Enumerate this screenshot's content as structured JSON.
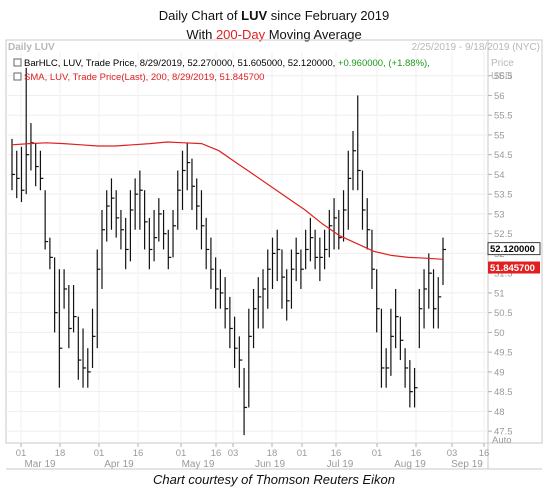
{
  "title": {
    "line1_prefix": "Daily Chart of ",
    "line1_ticker": "LUV",
    "line1_suffix": " since February 2019",
    "line2_prefix": "With ",
    "line2_highlight": "200-Day",
    "line2_suffix": " Moving Average"
  },
  "credit": "Chart courtesy of Thomson Reuters Eikon",
  "chart_data": {
    "type": "bar",
    "panel_label": "Daily LUV",
    "date_range": "2/25/2019 - 9/18/2019 (NYC)",
    "axis_header": [
      "Price",
      "USD"
    ],
    "legend": [
      {
        "text": "BarHLC, LUV, Trade Price, 8/29/2019, 52.270000, 51.605000, 52.120000, ",
        "change": "+0.960000, (+1.88%),",
        "color": "#000000",
        "change_color": "#1a9a1a"
      },
      {
        "text": "SMA, LUV, Trade Price(Last),  200,  8/29/2019, 51.845700",
        "color": "#e02020"
      }
    ],
    "ylim": [
      47.2,
      57.1
    ],
    "yticks": [
      47.5,
      48,
      48.5,
      49,
      49.5,
      50,
      50.5,
      51,
      51.5,
      52,
      52.5,
      53,
      53.5,
      54,
      54.5,
      55,
      55.5,
      56,
      56.5
    ],
    "ytick_labels": [
      "47.5",
      "48",
      "48.5",
      "49",
      "49.5",
      "50",
      "50.5",
      "51",
      "51.5",
      "52",
      "52.5",
      "53",
      "53.5",
      "54",
      "54.5",
      "55",
      "55.5",
      "56",
      "56.5"
    ],
    "day_ticks": [
      "01",
      "18",
      "01",
      "16",
      "01",
      "16",
      "03",
      "18",
      "01",
      "16",
      "01",
      "16",
      "03",
      "16"
    ],
    "month_labels": [
      "Mar 19",
      "Apr 19",
      "May 19",
      "Jun 19",
      "Jul 19",
      "Aug 19",
      "Sep 19"
    ],
    "auto_label": "Auto",
    "last_price": {
      "value": 52.12,
      "label": "52.120000"
    },
    "sma_value": {
      "value": 51.8457,
      "label": "51.845700"
    },
    "sma_color": "#e02020",
    "sma_points": [
      54.75,
      54.78,
      54.8,
      54.78,
      54.75,
      54.72,
      54.72,
      54.75,
      54.78,
      54.82,
      54.8,
      54.78,
      54.6,
      54.3,
      54.0,
      53.7,
      53.4,
      53.1,
      52.75,
      52.45,
      52.25,
      52.05,
      51.95,
      51.9,
      51.88,
      51.85
    ],
    "bars": [
      [
        53.6,
        54.9,
        54.0
      ],
      [
        53.4,
        54.6,
        53.9
      ],
      [
        53.3,
        54.7,
        53.6
      ],
      [
        53.5,
        56.7,
        54.5
      ],
      [
        54.1,
        55.3,
        54.8
      ],
      [
        53.7,
        54.8,
        54.2
      ],
      [
        53.6,
        54.6,
        53.9
      ],
      [
        52.1,
        53.6,
        52.3
      ],
      [
        51.6,
        52.4,
        51.9
      ],
      [
        50.0,
        51.9,
        50.5
      ],
      [
        48.6,
        51.6,
        49.6
      ],
      [
        50.6,
        51.6,
        51.1
      ],
      [
        49.6,
        51.2,
        50.1
      ],
      [
        50.0,
        51.2,
        50.4
      ],
      [
        48.8,
        50.4,
        49.3
      ],
      [
        48.6,
        50.1,
        49.1
      ],
      [
        48.6,
        49.6,
        49.0
      ],
      [
        49.1,
        50.6,
        49.9
      ],
      [
        49.6,
        52.1,
        51.6
      ],
      [
        51.1,
        53.1,
        52.6
      ],
      [
        52.3,
        53.6,
        53.2
      ],
      [
        52.6,
        53.9,
        53.4
      ],
      [
        52.4,
        53.6,
        52.9
      ],
      [
        52.1,
        53.1,
        52.6
      ],
      [
        51.6,
        52.9,
        52.1
      ],
      [
        51.8,
        53.6,
        53.1
      ],
      [
        52.6,
        53.9,
        53.5
      ],
      [
        52.6,
        54.1,
        53.6
      ],
      [
        52.1,
        53.6,
        52.8
      ],
      [
        51.6,
        52.9,
        52.1
      ],
      [
        51.8,
        53.1,
        52.4
      ],
      [
        52.3,
        53.4,
        53.0
      ],
      [
        52.1,
        53.1,
        52.5
      ],
      [
        51.6,
        52.6,
        51.9
      ],
      [
        51.9,
        53.1,
        52.7
      ],
      [
        52.6,
        54.1,
        53.6
      ],
      [
        53.1,
        54.6,
        54.1
      ],
      [
        53.6,
        54.8,
        54.3
      ],
      [
        53.1,
        54.4,
        53.7
      ],
      [
        52.6,
        53.9,
        53.2
      ],
      [
        52.1,
        53.6,
        52.7
      ],
      [
        51.6,
        52.9,
        52.1
      ],
      [
        51.1,
        52.4,
        51.6
      ],
      [
        50.6,
        51.9,
        51.1
      ],
      [
        50.6,
        51.6,
        51.0
      ],
      [
        50.1,
        51.4,
        50.6
      ],
      [
        49.6,
        50.9,
        50.1
      ],
      [
        49.1,
        50.4,
        49.6
      ],
      [
        48.6,
        49.9,
        49.3
      ],
      [
        47.4,
        49.1,
        48.1
      ],
      [
        48.1,
        50.6,
        49.9
      ],
      [
        49.6,
        51.1,
        50.6
      ],
      [
        50.1,
        51.4,
        50.9
      ],
      [
        50.1,
        51.6,
        51.1
      ],
      [
        50.6,
        52.1,
        51.6
      ],
      [
        51.1,
        52.4,
        52.0
      ],
      [
        51.3,
        52.6,
        52.1
      ],
      [
        50.6,
        52.1,
        51.4
      ],
      [
        50.3,
        51.6,
        50.8
      ],
      [
        50.6,
        52.1,
        51.6
      ],
      [
        51.3,
        52.4,
        52.0
      ],
      [
        51.1,
        52.1,
        51.6
      ],
      [
        51.6,
        52.6,
        52.1
      ],
      [
        51.8,
        52.9,
        52.4
      ],
      [
        51.6,
        52.6,
        51.9
      ],
      [
        51.3,
        52.4,
        51.9
      ],
      [
        51.6,
        52.6,
        52.1
      ],
      [
        51.9,
        53.1,
        52.7
      ],
      [
        52.1,
        53.4,
        52.9
      ],
      [
        52.1,
        53.1,
        52.4
      ],
      [
        52.3,
        53.6,
        53.1
      ],
      [
        52.6,
        54.6,
        53.9
      ],
      [
        53.6,
        55.1,
        54.6
      ],
      [
        53.6,
        56.0,
        54.1
      ],
      [
        52.6,
        54.1,
        53.1
      ],
      [
        52.1,
        53.4,
        52.6
      ],
      [
        51.1,
        52.6,
        51.6
      ],
      [
        50.0,
        51.6,
        50.6
      ],
      [
        48.6,
        50.6,
        49.1
      ],
      [
        48.6,
        49.6,
        49.1
      ],
      [
        48.9,
        50.6,
        49.9
      ],
      [
        49.6,
        51.1,
        50.4
      ],
      [
        49.3,
        50.4,
        49.8
      ],
      [
        48.6,
        49.6,
        49.1
      ],
      [
        48.1,
        49.3,
        48.5
      ],
      [
        48.1,
        49.1,
        48.6
      ],
      [
        49.6,
        51.1,
        50.6
      ],
      [
        50.1,
        51.6,
        51.1
      ],
      [
        50.6,
        52.0,
        51.5
      ],
      [
        50.1,
        51.6,
        50.6
      ],
      [
        50.1,
        51.4,
        50.9
      ],
      [
        51.2,
        52.4,
        52.1
      ]
    ]
  }
}
